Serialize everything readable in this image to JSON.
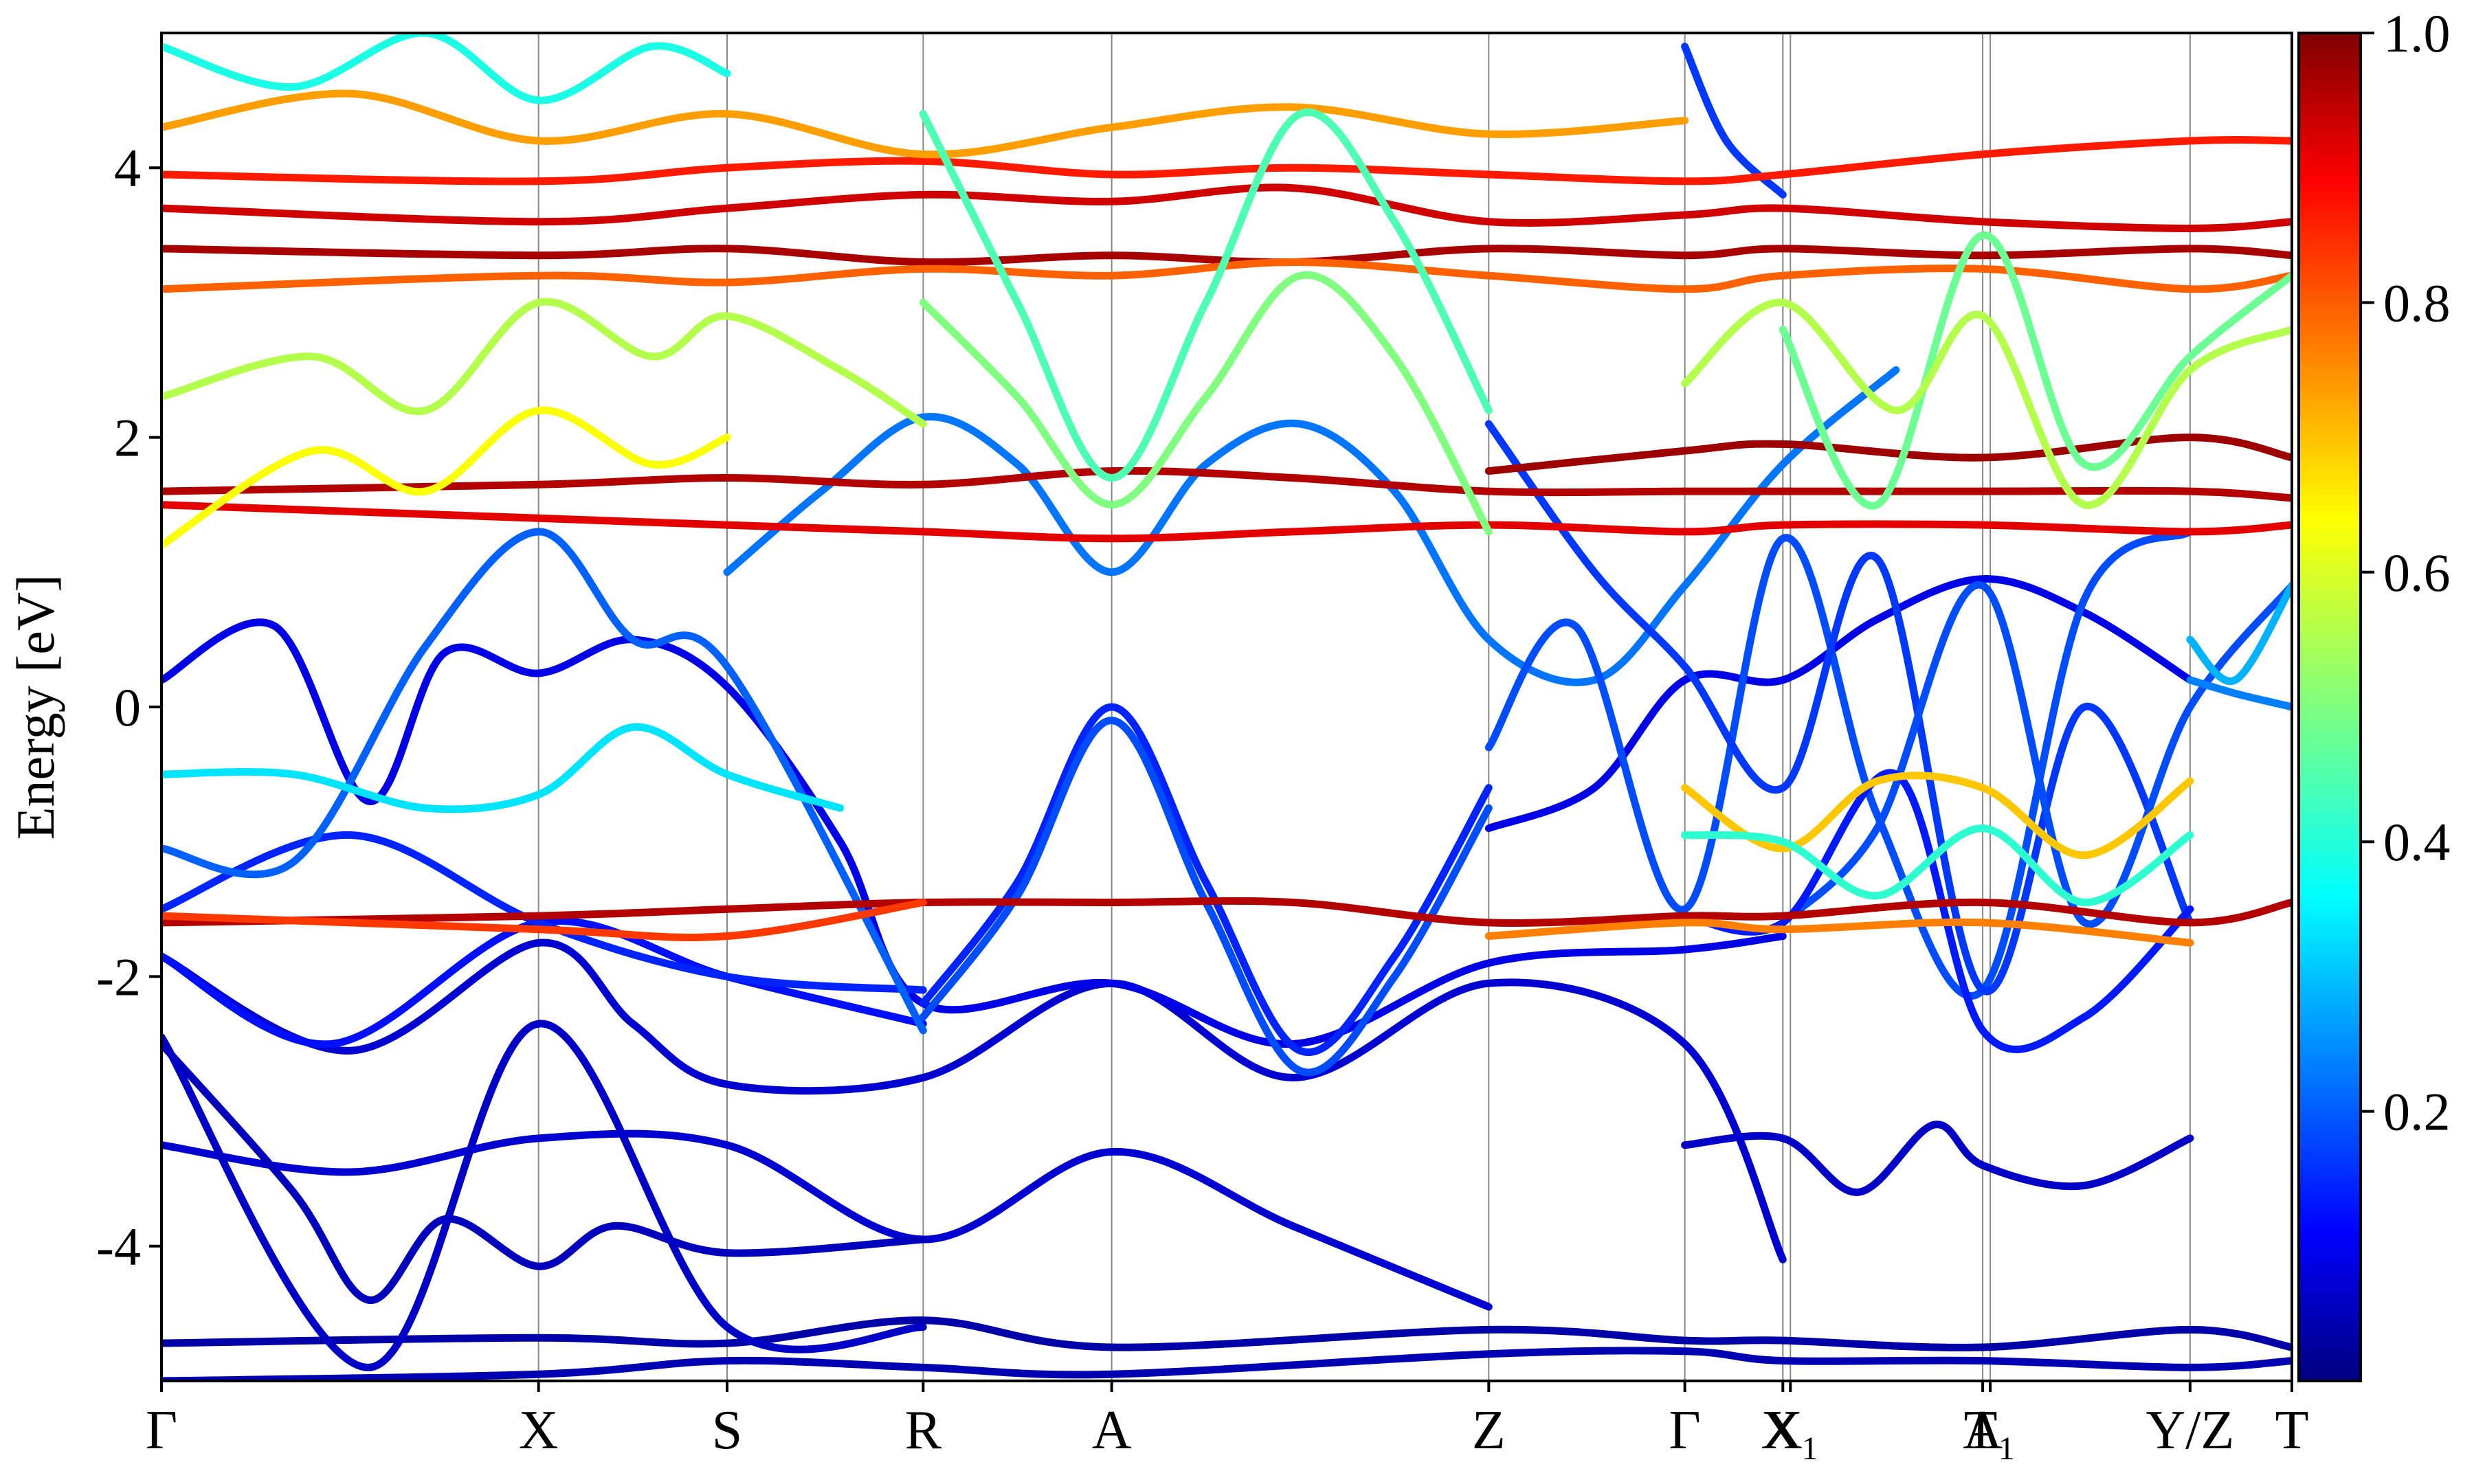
{
  "chart_data": {
    "type": "line",
    "ylabel": "Energy [eV]",
    "ylim": [
      -5,
      5
    ],
    "y_ticks": [
      -4,
      -2,
      0,
      2,
      4
    ],
    "y_tick_labels": [
      "-4",
      "-2",
      "0",
      "2",
      "4"
    ],
    "k_points": [
      {
        "label": "Γ",
        "x": 0.0
      },
      {
        "label": "X",
        "x": 1.0
      },
      {
        "label": "S",
        "x": 1.5
      },
      {
        "label": "R",
        "x": 2.02
      },
      {
        "label": "A",
        "x": 2.52
      },
      {
        "label": "Z",
        "x": 3.52
      },
      {
        "label": "Γ",
        "x": 4.04
      },
      {
        "label": "X",
        "x": 4.3
      },
      {
        "label": "X₁",
        "x": 4.32
      },
      {
        "label": "A",
        "x": 4.83
      },
      {
        "label": "T₁",
        "x": 4.85
      },
      {
        "label": "Y/Z",
        "x": 5.38
      },
      {
        "label": "T",
        "x": 5.65
      }
    ],
    "colorbar": {
      "colormap": "jet",
      "range": [
        0.0,
        1.0
      ],
      "ticks": [
        0.2,
        0.4,
        0.6,
        0.8,
        1.0
      ],
      "tick_labels": [
        "0.2",
        "0.4",
        "0.6",
        "0.8",
        "1.0"
      ]
    },
    "series": [
      {
        "c": 0.04,
        "x": [
          0,
          1,
          1.5,
          2.02,
          2.52,
          3.52,
          4.04,
          4.3,
          4.83,
          5.38,
          5.65
        ],
        "y": [
          -4.72,
          -4.68,
          -4.72,
          -4.55,
          -4.75,
          -4.62,
          -4.7,
          -4.7,
          -4.75,
          -4.62,
          -4.75
        ]
      },
      {
        "c": 0.05,
        "x": [
          0,
          1,
          1.5,
          2.02,
          2.52,
          3.52,
          4.04,
          4.3,
          4.83,
          5.38,
          5.65
        ],
        "y": [
          -5.0,
          -4.95,
          -4.85,
          -4.9,
          -4.95,
          -4.8,
          -4.78,
          -4.85,
          -4.85,
          -4.9,
          -4.85
        ]
      },
      {
        "c": 0.08,
        "x": [
          0,
          0.5,
          1,
          1.5,
          2.02,
          2.52,
          3.0,
          3.52
        ],
        "y": [
          -3.25,
          -3.45,
          -3.2,
          -3.25,
          -3.95,
          -3.3,
          -3.85,
          -4.45
        ]
      },
      {
        "c": 0.06,
        "x": [
          0,
          0.35,
          0.55,
          0.75,
          1,
          1.2,
          1.5,
          2.02
        ],
        "y": [
          -2.5,
          -3.6,
          -4.4,
          -3.8,
          -4.15,
          -3.85,
          -4.05,
          -3.95
        ]
      },
      {
        "c": 0.07,
        "x": [
          4.04,
          4.3,
          4.5,
          4.7,
          4.83,
          5.1,
          5.38
        ],
        "y": [
          -3.25,
          -3.2,
          -3.6,
          -3.1,
          -3.4,
          -3.55,
          -3.2
        ]
      },
      {
        "c": 0.08,
        "x": [
          0,
          0.5,
          1,
          1.25,
          1.5,
          2.02,
          2.52,
          3.0,
          3.52,
          4.04,
          4.3
        ],
        "y": [
          -1.85,
          -2.55,
          -1.75,
          -2.35,
          -2.8,
          -2.75,
          -2.05,
          -2.75,
          -2.05,
          -2.5,
          -4.1
        ]
      },
      {
        "c": 0.07,
        "x": [
          0,
          0.55,
          1,
          1.5,
          2.02
        ],
        "y": [
          -2.45,
          -4.9,
          -2.35,
          -4.6,
          -4.6
        ]
      },
      {
        "c": 0.1,
        "x": [
          0,
          0.3,
          0.55,
          0.75,
          1,
          1.25,
          1.5,
          1.8,
          2.02,
          2.52,
          3.0,
          3.52,
          4.04,
          4.3
        ],
        "y": [
          0.2,
          0.6,
          -0.7,
          0.4,
          0.25,
          0.5,
          0.15,
          -1.0,
          -2.2,
          -2.05,
          -2.5,
          -1.9,
          -1.8,
          -1.7
        ]
      },
      {
        "c": 0.1,
        "x": [
          3.52,
          3.8,
          4.04,
          4.3,
          4.55,
          4.83,
          5.1,
          5.38
        ],
        "y": [
          -0.9,
          -0.6,
          0.2,
          0.2,
          0.65,
          0.95,
          0.7,
          0.2
        ]
      },
      {
        "c": 0.14,
        "x": [
          0,
          0.45,
          1,
          1.5,
          2.02
        ],
        "y": [
          -1.85,
          -2.5,
          -1.6,
          -2.0,
          -2.35
        ]
      },
      {
        "c": 0.16,
        "x": [
          0,
          0.5,
          1,
          1.5,
          2.02
        ],
        "y": [
          -1.5,
          -0.95,
          -1.6,
          -2.0,
          -2.1
        ]
      },
      {
        "c": 0.22,
        "x": [
          0,
          0.35,
          0.7,
          1,
          1.25,
          1.5,
          2.02
        ],
        "y": [
          -1.05,
          -1.15,
          0.45,
          1.3,
          0.5,
          0.3,
          -2.4
        ]
      },
      {
        "c": 0.16,
        "x": [
          2.02,
          2.27,
          2.52,
          2.77,
          3.02,
          3.27,
          3.52
        ],
        "y": [
          -2.2,
          -1.3,
          0.0,
          -1.3,
          -2.55,
          -1.85,
          -0.6
        ]
      },
      {
        "c": 0.2,
        "x": [
          2.02,
          2.27,
          2.52,
          2.77,
          3.02,
          3.27,
          3.52
        ],
        "y": [
          -2.3,
          -1.4,
          -0.1,
          -1.45,
          -2.7,
          -2.0,
          -0.75
        ]
      },
      {
        "c": 0.24,
        "x": [
          1.5,
          1.75,
          2.02,
          2.27,
          2.52,
          2.77,
          3.02,
          3.27,
          3.52,
          3.8,
          4.04,
          4.3,
          4.6
        ],
        "y": [
          1.0,
          1.6,
          2.15,
          1.8,
          1.0,
          1.8,
          2.1,
          1.6,
          0.5,
          0.2,
          0.9,
          1.8,
          2.5
        ]
      },
      {
        "c": 0.2,
        "x": [
          3.52,
          3.75,
          4.04,
          4.3,
          4.55,
          4.83,
          5.1,
          5.38
        ],
        "y": [
          -0.3,
          0.6,
          -1.5,
          1.25,
          -0.8,
          -2.1,
          0.8,
          1.3
        ]
      },
      {
        "c": 0.18,
        "x": [
          3.52,
          3.8,
          4.04,
          4.3,
          4.55,
          4.83,
          5.1,
          5.38
        ],
        "y": [
          2.1,
          1.0,
          0.3,
          -0.6,
          1.1,
          -2.1,
          0.0,
          -1.6
        ]
      },
      {
        "c": 0.2,
        "x": [
          4.3,
          4.55,
          4.83,
          5.1,
          5.38,
          5.65
        ],
        "y": [
          -1.6,
          -0.9,
          0.9,
          -1.6,
          0.0,
          0.9
        ]
      },
      {
        "c": 0.15,
        "x": [
          4.04,
          4.3,
          4.6,
          4.83,
          5.1,
          5.38
        ],
        "y": [
          -1.55,
          -1.6,
          -0.5,
          -2.4,
          -2.3,
          -1.5
        ]
      },
      {
        "c": 0.25,
        "x": [
          5.38,
          5.5,
          5.65
        ],
        "y": [
          0.2,
          0.1,
          0.0
        ]
      },
      {
        "c": 0.3,
        "x": [
          5.38,
          5.5,
          5.65
        ],
        "y": [
          0.5,
          0.2,
          0.9
        ]
      },
      {
        "c": 0.18,
        "x": [
          4.04,
          4.15,
          4.3
        ],
        "y": [
          4.9,
          4.2,
          3.8
        ]
      },
      {
        "c": 0.95,
        "x": [
          0,
          1,
          1.5,
          2.02,
          2.52,
          3.0,
          3.52,
          4.04,
          4.3,
          4.83,
          5.38,
          5.65
        ],
        "y": [
          -1.6,
          -1.55,
          -1.5,
          -1.45,
          -1.45,
          -1.45,
          -1.6,
          -1.55,
          -1.55,
          -1.45,
          -1.6,
          -1.45
        ]
      },
      {
        "c": 0.82,
        "x": [
          0,
          1,
          1.5,
          2.02
        ],
        "y": [
          -1.55,
          -1.65,
          -1.7,
          -1.45
        ]
      },
      {
        "c": 0.75,
        "x": [
          3.52,
          4.04,
          4.3,
          4.83,
          5.38
        ],
        "y": [
          -1.7,
          -1.6,
          -1.65,
          -1.6,
          -1.75
        ]
      },
      {
        "c": 0.95,
        "x": [
          0,
          1,
          1.5,
          2.02,
          2.52,
          3.0,
          3.52,
          4.04,
          4.3,
          4.83,
          5.38,
          5.65
        ],
        "y": [
          1.6,
          1.65,
          1.7,
          1.65,
          1.75,
          1.7,
          1.6,
          1.6,
          1.6,
          1.6,
          1.6,
          1.55
        ]
      },
      {
        "c": 0.9,
        "x": [
          0,
          1,
          1.5,
          2.02,
          2.52,
          3.0,
          3.52,
          4.04,
          4.3,
          4.83,
          5.38,
          5.65
        ],
        "y": [
          1.5,
          1.4,
          1.35,
          1.3,
          1.25,
          1.3,
          1.35,
          1.3,
          1.35,
          1.35,
          1.3,
          1.35
        ]
      },
      {
        "c": 0.97,
        "x": [
          3.52,
          4.04,
          4.3,
          4.83,
          5.38,
          5.65
        ],
        "y": [
          1.75,
          1.9,
          1.95,
          1.85,
          2.0,
          1.85
        ]
      },
      {
        "c": 0.92,
        "x": [
          0,
          1,
          1.5,
          2.02,
          2.52,
          3.0,
          3.52,
          4.04,
          4.3,
          4.83,
          5.38,
          5.65
        ],
        "y": [
          3.7,
          3.6,
          3.7,
          3.8,
          3.75,
          3.85,
          3.6,
          3.65,
          3.7,
          3.6,
          3.55,
          3.6
        ]
      },
      {
        "c": 0.96,
        "x": [
          0,
          1,
          1.5,
          2.02,
          2.52,
          3.0,
          3.52,
          4.04,
          4.3,
          4.83,
          5.38,
          5.65
        ],
        "y": [
          3.4,
          3.35,
          3.4,
          3.3,
          3.35,
          3.3,
          3.4,
          3.35,
          3.4,
          3.35,
          3.4,
          3.35
        ]
      },
      {
        "c": 0.85,
        "x": [
          0,
          1,
          1.5,
          2.02,
          2.52,
          3.0,
          3.52,
          4.04,
          4.3,
          4.83,
          5.38,
          5.65
        ],
        "y": [
          3.95,
          3.9,
          4.0,
          4.05,
          3.95,
          4.0,
          3.95,
          3.9,
          3.95,
          4.1,
          4.2,
          4.2
        ]
      },
      {
        "c": 0.78,
        "x": [
          0,
          1,
          1.5,
          2.02,
          2.52,
          3.0,
          3.52,
          4.04,
          4.3,
          4.83,
          5.38,
          5.65
        ],
        "y": [
          3.1,
          3.2,
          3.15,
          3.25,
          3.2,
          3.3,
          3.2,
          3.1,
          3.2,
          3.25,
          3.1,
          3.2
        ]
      },
      {
        "c": 0.72,
        "x": [
          0,
          0.5,
          1,
          1.5,
          2.02,
          2.52,
          3.0,
          3.52,
          4.04
        ],
        "y": [
          4.3,
          4.55,
          4.2,
          4.4,
          4.1,
          4.3,
          4.45,
          4.25,
          4.35
        ]
      },
      {
        "c": 0.55,
        "x": [
          0,
          0.4,
          0.7,
          1,
          1.3,
          1.5,
          1.8,
          2.02
        ],
        "y": [
          2.3,
          2.6,
          2.2,
          3.0,
          2.6,
          2.9,
          2.5,
          2.1
        ]
      },
      {
        "c": 0.62,
        "x": [
          0,
          0.4,
          0.7,
          1,
          1.3,
          1.5
        ],
        "y": [
          1.2,
          1.9,
          1.6,
          2.2,
          1.8,
          2.0
        ]
      },
      {
        "c": 0.45,
        "x": [
          2.02,
          2.27,
          2.52,
          2.77,
          3.02,
          3.27,
          3.52
        ],
        "y": [
          4.4,
          3.0,
          1.7,
          3.0,
          4.4,
          3.6,
          2.2
        ]
      },
      {
        "c": 0.5,
        "x": [
          2.02,
          2.27,
          2.52,
          2.77,
          3.02,
          3.27,
          3.52
        ],
        "y": [
          3.0,
          2.3,
          1.5,
          2.3,
          3.2,
          2.6,
          1.3
        ]
      },
      {
        "c": 0.4,
        "x": [
          0,
          0.35,
          0.7,
          1,
          1.3,
          1.5
        ],
        "y": [
          4.9,
          4.6,
          5.0,
          4.5,
          4.9,
          4.7
        ]
      },
      {
        "c": 0.48,
        "x": [
          4.3,
          4.55,
          4.83,
          5.1,
          5.38,
          5.65
        ],
        "y": [
          2.8,
          1.5,
          3.5,
          1.8,
          2.6,
          3.2
        ]
      },
      {
        "c": 0.55,
        "x": [
          4.04,
          4.3,
          4.6,
          4.83,
          5.1,
          5.38,
          5.65
        ],
        "y": [
          2.4,
          3.0,
          2.2,
          2.9,
          1.5,
          2.5,
          2.8
        ]
      },
      {
        "c": 0.68,
        "x": [
          4.04,
          4.3,
          4.55,
          4.83,
          5.1,
          5.38
        ],
        "y": [
          -0.6,
          -1.05,
          -0.55,
          -0.6,
          -1.1,
          -0.55
        ]
      },
      {
        "c": 0.42,
        "x": [
          4.04,
          4.3,
          4.55,
          4.83,
          5.1,
          5.38
        ],
        "y": [
          -0.95,
          -1.0,
          -1.4,
          -0.9,
          -1.45,
          -0.95
        ]
      },
      {
        "c": 0.35,
        "x": [
          0,
          0.35,
          0.7,
          1,
          1.25,
          1.5,
          1.8
        ],
        "y": [
          -0.5,
          -0.5,
          -0.75,
          -0.65,
          -0.15,
          -0.5,
          -0.75
        ]
      }
    ]
  }
}
